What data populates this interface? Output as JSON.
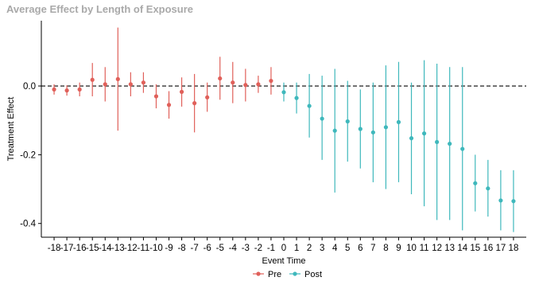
{
  "chart_data": {
    "type": "scatter",
    "title": "Average Effect by Length of Exposure",
    "xlabel": "Event Time",
    "ylabel": "Treatment Effect",
    "xlim": [
      -19,
      19
    ],
    "ylim": [
      -0.44,
      0.19
    ],
    "yticks": [
      0.0,
      -0.2,
      -0.4
    ],
    "ytick_labels": [
      "0.0",
      "-0.2",
      "-0.4"
    ],
    "x_ticks": [
      -18,
      -17,
      -16,
      -15,
      -14,
      -13,
      -12,
      -11,
      -10,
      -9,
      -8,
      -7,
      -6,
      -5,
      -4,
      -3,
      -2,
      -1,
      0,
      1,
      2,
      3,
      4,
      5,
      6,
      7,
      8,
      9,
      10,
      11,
      12,
      13,
      14,
      15,
      16,
      17,
      18
    ],
    "reference_line": {
      "y": 0,
      "style": "dashed"
    },
    "legend": {
      "position": "bottom",
      "entries": [
        "Pre",
        "Post"
      ]
    },
    "series": [
      {
        "name": "Pre",
        "color": "#E0605A",
        "points": [
          {
            "x": -18,
            "y": -0.01,
            "lo": -0.025,
            "hi": 0.005
          },
          {
            "x": -17,
            "y": -0.013,
            "lo": -0.028,
            "hi": 0.002
          },
          {
            "x": -16,
            "y": -0.01,
            "lo": -0.03,
            "hi": 0.01
          },
          {
            "x": -15,
            "y": 0.018,
            "lo": -0.03,
            "hi": 0.067
          },
          {
            "x": -14,
            "y": 0.005,
            "lo": -0.045,
            "hi": 0.055
          },
          {
            "x": -13,
            "y": 0.02,
            "lo": -0.13,
            "hi": 0.17
          },
          {
            "x": -12,
            "y": 0.005,
            "lo": -0.03,
            "hi": 0.04
          },
          {
            "x": -11,
            "y": 0.01,
            "lo": -0.02,
            "hi": 0.04
          },
          {
            "x": -10,
            "y": -0.03,
            "lo": -0.065,
            "hi": 0.005
          },
          {
            "x": -9,
            "y": -0.055,
            "lo": -0.095,
            "hi": -0.015
          },
          {
            "x": -8,
            "y": -0.017,
            "lo": -0.06,
            "hi": 0.025
          },
          {
            "x": -7,
            "y": -0.05,
            "lo": -0.135,
            "hi": 0.035
          },
          {
            "x": -6,
            "y": -0.033,
            "lo": -0.075,
            "hi": 0.01
          },
          {
            "x": -5,
            "y": 0.022,
            "lo": -0.04,
            "hi": 0.085
          },
          {
            "x": -4,
            "y": 0.01,
            "lo": -0.05,
            "hi": 0.07
          },
          {
            "x": -3,
            "y": 0.003,
            "lo": -0.045,
            "hi": 0.05
          },
          {
            "x": -2,
            "y": 0.005,
            "lo": -0.02,
            "hi": 0.03
          },
          {
            "x": -1,
            "y": 0.015,
            "lo": -0.025,
            "hi": 0.055
          }
        ]
      },
      {
        "name": "Post",
        "color": "#3FB8BC",
        "points": [
          {
            "x": 0,
            "y": -0.018,
            "lo": -0.045,
            "hi": 0.01
          },
          {
            "x": 1,
            "y": -0.035,
            "lo": -0.08,
            "hi": 0.01
          },
          {
            "x": 2,
            "y": -0.058,
            "lo": -0.15,
            "hi": 0.035
          },
          {
            "x": 3,
            "y": -0.095,
            "lo": -0.215,
            "hi": 0.03
          },
          {
            "x": 4,
            "y": -0.13,
            "lo": -0.31,
            "hi": 0.05
          },
          {
            "x": 5,
            "y": -0.103,
            "lo": -0.22,
            "hi": 0.015
          },
          {
            "x": 6,
            "y": -0.125,
            "lo": -0.24,
            "hi": -0.01
          },
          {
            "x": 7,
            "y": -0.135,
            "lo": -0.28,
            "hi": 0.01
          },
          {
            "x": 8,
            "y": -0.12,
            "lo": -0.3,
            "hi": 0.06
          },
          {
            "x": 9,
            "y": -0.105,
            "lo": -0.28,
            "hi": 0.07
          },
          {
            "x": 10,
            "y": -0.152,
            "lo": -0.315,
            "hi": 0.01
          },
          {
            "x": 11,
            "y": -0.138,
            "lo": -0.35,
            "hi": 0.075
          },
          {
            "x": 12,
            "y": -0.163,
            "lo": -0.39,
            "hi": 0.065
          },
          {
            "x": 13,
            "y": -0.168,
            "lo": -0.39,
            "hi": 0.055
          },
          {
            "x": 14,
            "y": -0.183,
            "lo": -0.42,
            "hi": 0.055
          },
          {
            "x": 15,
            "y": -0.283,
            "lo": -0.365,
            "hi": -0.2
          },
          {
            "x": 16,
            "y": -0.298,
            "lo": -0.38,
            "hi": -0.215
          },
          {
            "x": 17,
            "y": -0.333,
            "lo": -0.42,
            "hi": -0.245
          },
          {
            "x": 18,
            "y": -0.335,
            "lo": -0.425,
            "hi": -0.245
          }
        ]
      }
    ]
  }
}
